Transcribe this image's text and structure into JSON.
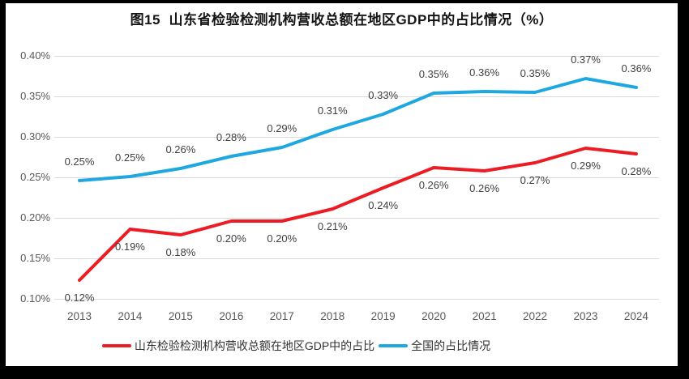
{
  "title": "图15  山东省检验检测机构营收总额在地区GDP中的占比情况（%）",
  "y_axis": {
    "ticks": [
      "0.40%",
      "0.35%",
      "0.30%",
      "0.25%",
      "0.20%",
      "0.15%",
      "0.10%"
    ],
    "tick_values": [
      0.4,
      0.35,
      0.3,
      0.25,
      0.2,
      0.15,
      0.1
    ]
  },
  "x_axis": {
    "years": [
      "2013",
      "2014",
      "2015",
      "2016",
      "2017",
      "2018",
      "2019",
      "2020",
      "2021",
      "2022",
      "2023",
      "2024"
    ]
  },
  "legend": {
    "items": [
      {
        "label": "山东检验检测机构营收总额在地区GDP中的占比",
        "color": "#ec1c24"
      },
      {
        "label": "全国的占比情况",
        "color": "#1fa8e0"
      }
    ]
  },
  "colors": {
    "shandong_red": "#ec1c24",
    "national_blue": "#1fa8e0",
    "gridline": "#d9d9d9",
    "axis_text": "#595959",
    "data_label_text": "#404040",
    "frame": "#000000",
    "background": "#ffffff"
  },
  "chart_data": {
    "type": "line",
    "title": "图15 山东省检验检测机构营收总额在地区GDP中的占比情况（%）",
    "categories": [
      "2013",
      "2014",
      "2015",
      "2016",
      "2017",
      "2018",
      "2019",
      "2020",
      "2021",
      "2022",
      "2023",
      "2024"
    ],
    "series": [
      {
        "name": "山东检验检测机构营收总额在地区GDP中的占比",
        "color": "#ec1c24",
        "values": [
          0.12,
          0.19,
          0.18,
          0.2,
          0.2,
          0.21,
          0.24,
          0.26,
          0.26,
          0.27,
          0.29,
          0.28
        ],
        "labels": [
          "0.12%",
          "0.19%",
          "0.18%",
          "0.20%",
          "0.20%",
          "0.21%",
          "0.24%",
          "0.26%",
          "0.26%",
          "0.27%",
          "0.29%",
          "0.28%"
        ],
        "plot_values": [
          0.123,
          0.186,
          0.179,
          0.196,
          0.196,
          0.211,
          0.237,
          0.262,
          0.258,
          0.268,
          0.286,
          0.279
        ],
        "label_side": "below"
      },
      {
        "name": "全国的占比情况",
        "color": "#1fa8e0",
        "values": [
          0.25,
          0.25,
          0.26,
          0.28,
          0.29,
          0.31,
          0.33,
          0.35,
          0.36,
          0.35,
          0.37,
          0.36
        ],
        "labels": [
          "0.25%",
          "0.25%",
          "0.26%",
          "0.28%",
          "0.29%",
          "0.31%",
          "0.33%",
          "0.35%",
          "0.36%",
          "0.35%",
          "0.37%",
          "0.36%"
        ],
        "plot_values": [
          0.246,
          0.251,
          0.261,
          0.276,
          0.287,
          0.309,
          0.328,
          0.354,
          0.356,
          0.355,
          0.372,
          0.361
        ],
        "label_side": "above"
      }
    ],
    "ylim": [
      0.1,
      0.4
    ],
    "y_ticks": [
      0.4,
      0.35,
      0.3,
      0.25,
      0.2,
      0.15,
      0.1
    ],
    "grid": true,
    "legend_position": "bottom"
  }
}
